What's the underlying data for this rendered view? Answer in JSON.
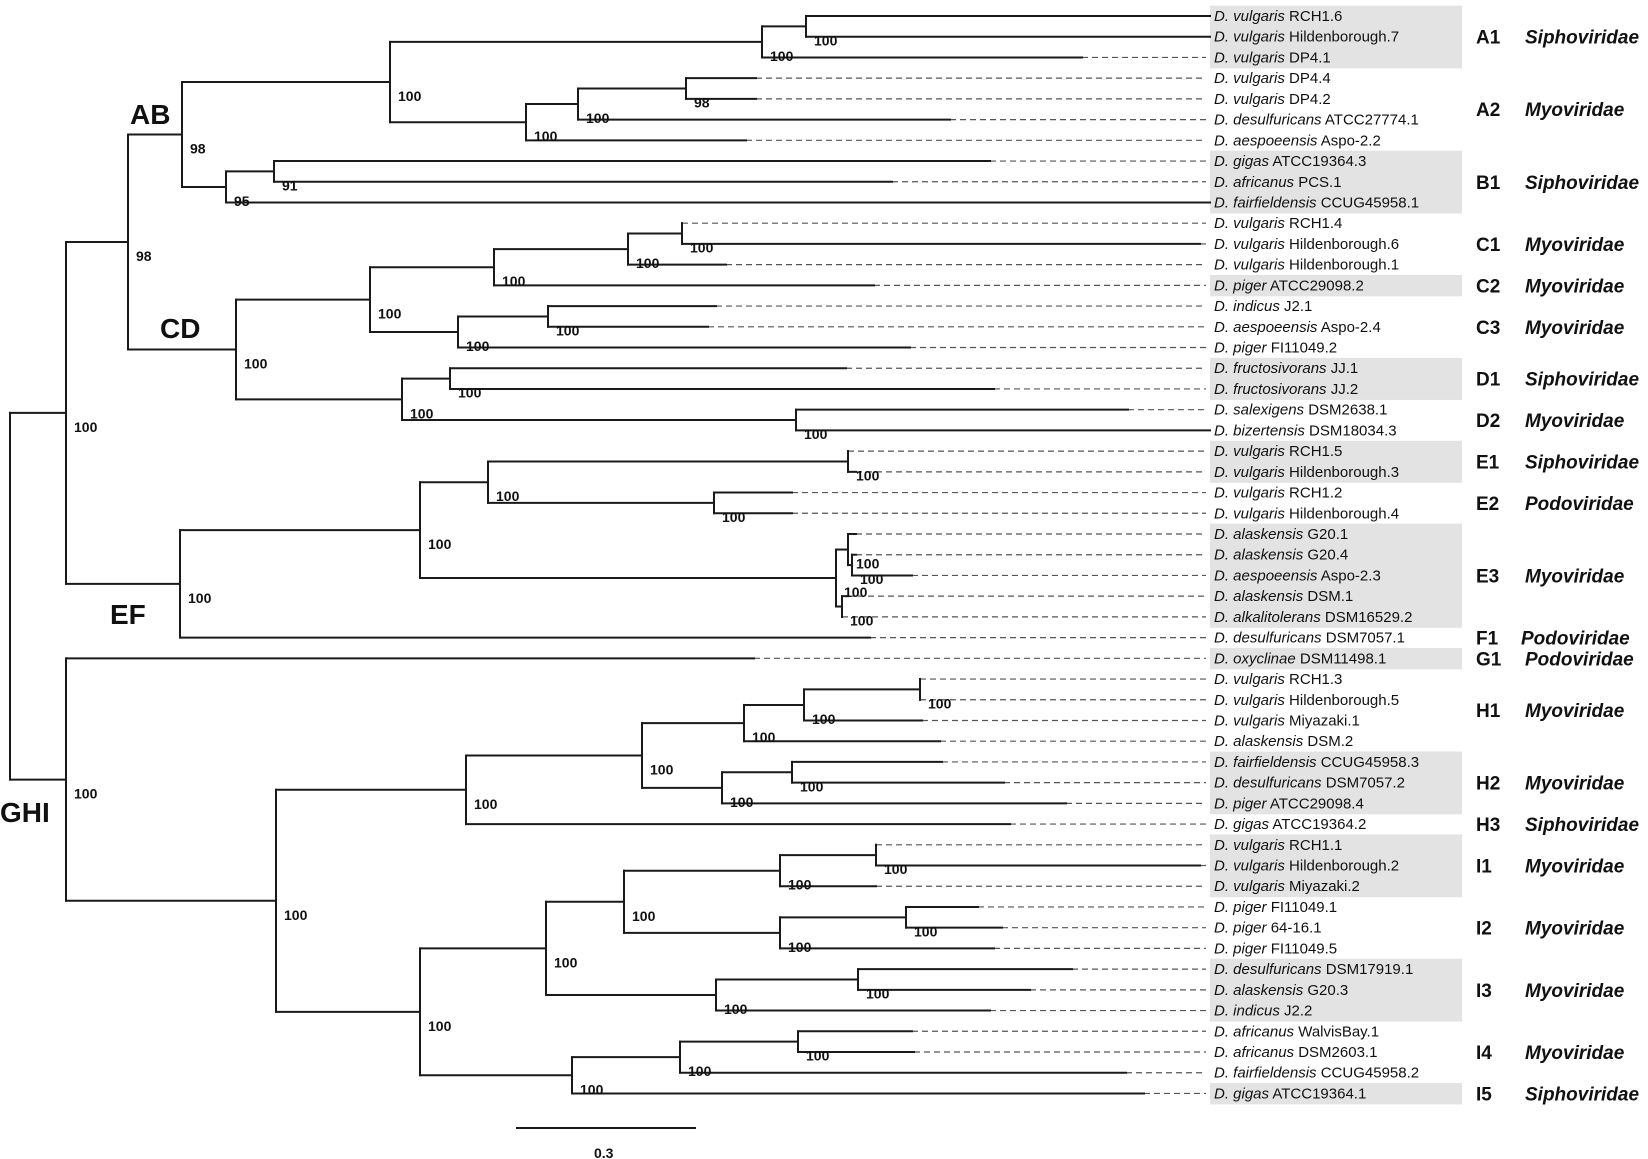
{
  "tree": {
    "taxa": [
      {
        "sp": "D. vulgaris",
        "strain": "RCH1.6",
        "shaded": true
      },
      {
        "sp": "D. vulgaris",
        "strain": "Hildenborough.7",
        "shaded": true
      },
      {
        "sp": "D. vulgaris",
        "strain": "DP4.1",
        "shaded": true
      },
      {
        "sp": "D. vulgaris",
        "strain": "DP4.4",
        "shaded": false
      },
      {
        "sp": "D. vulgaris",
        "strain": "DP4.2",
        "shaded": false
      },
      {
        "sp": "D. desulfuricans",
        "strain": "ATCC27774.1",
        "shaded": false
      },
      {
        "sp": "D. aespoeensis",
        "strain": "Aspo-2.2",
        "shaded": false
      },
      {
        "sp": "D. gigas",
        "strain": "ATCC19364.3",
        "shaded": true
      },
      {
        "sp": "D. africanus",
        "strain": "PCS.1",
        "shaded": true
      },
      {
        "sp": "D. fairfieldensis",
        "strain": "CCUG45958.1",
        "shaded": true
      },
      {
        "sp": "D. vulgaris",
        "strain": "RCH1.4",
        "shaded": false
      },
      {
        "sp": "D. vulgaris",
        "strain": "Hildenborough.6",
        "shaded": false
      },
      {
        "sp": "D. vulgaris",
        "strain": "Hildenborough.1",
        "shaded": false
      },
      {
        "sp": "D. piger",
        "strain": "ATCC29098.2",
        "shaded": true
      },
      {
        "sp": "D. indicus",
        "strain": "J2.1",
        "shaded": false
      },
      {
        "sp": "D. aespoeensis",
        "strain": "Aspo-2.4",
        "shaded": false
      },
      {
        "sp": "D. piger",
        "strain": "FI11049.2",
        "shaded": false
      },
      {
        "sp": "D. fructosivorans",
        "strain": "JJ.1",
        "shaded": true
      },
      {
        "sp": "D. fructosivorans",
        "strain": "JJ.2",
        "shaded": true
      },
      {
        "sp": "D. salexigens",
        "strain": "DSM2638.1",
        "shaded": false
      },
      {
        "sp": "D. bizertensis",
        "strain": "DSM18034.3",
        "shaded": false
      },
      {
        "sp": "D. vulgaris",
        "strain": "RCH1.5",
        "shaded": true
      },
      {
        "sp": "D. vulgaris",
        "strain": "Hildenborough.3",
        "shaded": true
      },
      {
        "sp": "D. vulgaris",
        "strain": "RCH1.2",
        "shaded": false
      },
      {
        "sp": "D. vulgaris",
        "strain": "Hildenborough.4",
        "shaded": false
      },
      {
        "sp": "D. alaskensis",
        "strain": "G20.1",
        "shaded": true
      },
      {
        "sp": "D. alaskensis",
        "strain": "G20.4",
        "shaded": true
      },
      {
        "sp": "D. aespoeensis",
        "strain": "Aspo-2.3",
        "shaded": true
      },
      {
        "sp": "D. alaskensis",
        "strain": "DSM.1",
        "shaded": true
      },
      {
        "sp": "D. alkalitolerans",
        "strain": "DSM16529.2",
        "shaded": true
      },
      {
        "sp": "D. desulfuricans",
        "strain": "DSM7057.1",
        "shaded": false
      },
      {
        "sp": "D. oxyclinae",
        "strain": "DSM11498.1",
        "shaded": true
      },
      {
        "sp": "D. vulgaris",
        "strain": "RCH1.3",
        "shaded": false
      },
      {
        "sp": "D. vulgaris",
        "strain": "Hildenborough.5",
        "shaded": false
      },
      {
        "sp": "D. vulgaris",
        "strain": "Miyazaki.1",
        "shaded": false
      },
      {
        "sp": "D. alaskensis",
        "strain": "DSM.2",
        "shaded": false
      },
      {
        "sp": "D. fairfieldensis",
        "strain": "CCUG45958.3",
        "shaded": true
      },
      {
        "sp": "D. desulfuricans",
        "strain": "DSM7057.2",
        "shaded": true
      },
      {
        "sp": "D. piger",
        "strain": "ATCC29098.4",
        "shaded": true
      },
      {
        "sp": "D. gigas",
        "strain": "ATCC19364.2",
        "shaded": false
      },
      {
        "sp": "D. vulgaris",
        "strain": "RCH1.1",
        "shaded": true
      },
      {
        "sp": "D. vulgaris",
        "strain": "Hildenborough.2",
        "shaded": true
      },
      {
        "sp": "D. vulgaris",
        "strain": "Miyazaki.2",
        "shaded": true
      },
      {
        "sp": "D. piger",
        "strain": "FI11049.1",
        "shaded": false
      },
      {
        "sp": "D. piger",
        "strain": "64-16.1",
        "shaded": false
      },
      {
        "sp": "D. piger",
        "strain": "FI11049.5",
        "shaded": false
      },
      {
        "sp": "D. desulfuricans",
        "strain": "DSM17919.1",
        "shaded": true
      },
      {
        "sp": "D. alaskensis",
        "strain": "G20.3",
        "shaded": true
      },
      {
        "sp": "D. indicus",
        "strain": "J2.2",
        "shaded": true
      },
      {
        "sp": "D. africanus",
        "strain": "WalvisBay.1",
        "shaded": false
      },
      {
        "sp": "D. africanus",
        "strain": "DSM2603.1",
        "shaded": false
      },
      {
        "sp": "D. fairfieldensis",
        "strain": "CCUG45958.2",
        "shaded": false
      },
      {
        "sp": "D. gigas",
        "strain": "ATCC19364.1",
        "shaded": true
      }
    ],
    "groups": [
      {
        "code": "A1",
        "family": "Siphoviridae"
      },
      {
        "code": "A2",
        "family": "Myoviridae"
      },
      {
        "code": "B1",
        "family": "Siphoviridae"
      },
      {
        "code": "C1",
        "family": "Myoviridae"
      },
      {
        "code": "C2",
        "family": "Myoviridae"
      },
      {
        "code": "C3",
        "family": "Myoviridae"
      },
      {
        "code": "D1",
        "family": "Siphoviridae"
      },
      {
        "code": "D2",
        "family": "Myoviridae"
      },
      {
        "code": "E1",
        "family": "Siphoviridae"
      },
      {
        "code": "E2",
        "family": "Podoviridae"
      },
      {
        "code": "E3",
        "family": "Myoviridae"
      },
      {
        "code": "F1",
        "family": "Podoviridae"
      },
      {
        "code": "G1",
        "family": "Podoviridae"
      },
      {
        "code": "H1",
        "family": "Myoviridae"
      },
      {
        "code": "H2",
        "family": "Myoviridae"
      },
      {
        "code": "H3",
        "family": "Siphoviridae"
      },
      {
        "code": "I1",
        "family": "Myoviridae"
      },
      {
        "code": "I2",
        "family": "Myoviridae"
      },
      {
        "code": "I3",
        "family": "Myoviridae"
      },
      {
        "code": "I4",
        "family": "Myoviridae"
      },
      {
        "code": "I5",
        "family": "Siphoviridae"
      }
    ],
    "clades": [
      "AB",
      "CD",
      "EF",
      "GHI"
    ],
    "bootstrap": [
      "100",
      "100",
      "100",
      "100",
      "100",
      "100",
      "98",
      "91",
      "95",
      "98",
      "100",
      "100",
      "100",
      "100",
      "100",
      "100",
      "100",
      "100",
      "100",
      "100",
      "100",
      "100",
      "100",
      "100",
      "100",
      "100",
      "100",
      "100",
      "100",
      "100",
      "100",
      "100",
      "100",
      "100",
      "100",
      "100",
      "100",
      "100",
      "100",
      "100",
      "100",
      "100",
      "100",
      "100",
      "100",
      "100",
      "100",
      "100",
      "100",
      "100",
      "100"
    ],
    "scale_bar_label": "0.3"
  }
}
